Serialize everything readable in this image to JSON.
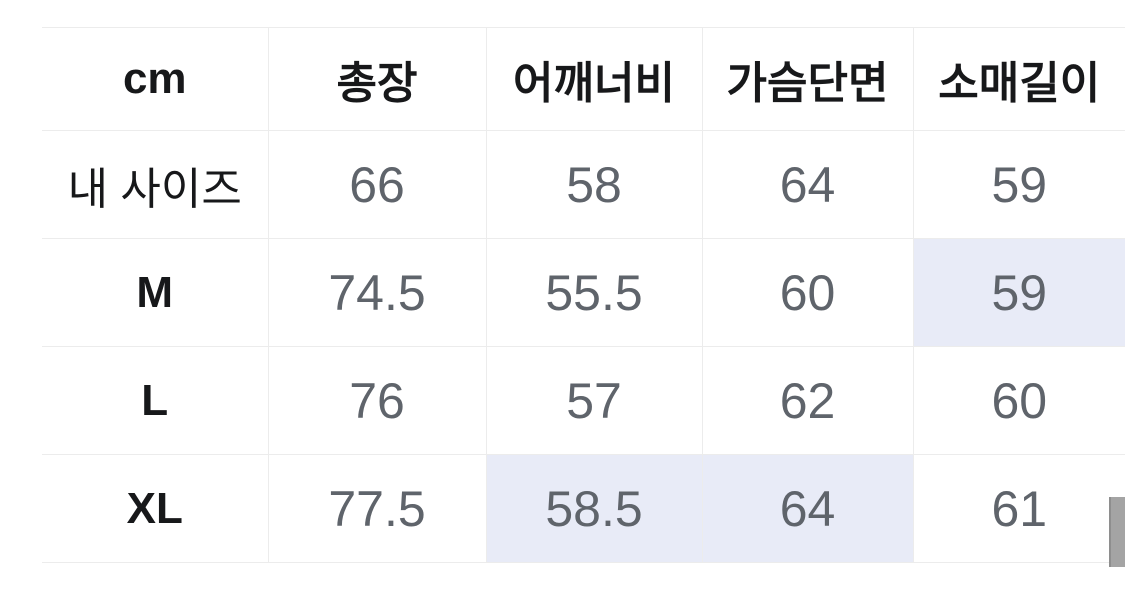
{
  "table": {
    "unit": "cm",
    "columns": [
      "cm",
      "총장",
      "어깨너비",
      "가슴단면",
      "소매길이"
    ],
    "rows": [
      {
        "label": "내 사이즈",
        "bold": false,
        "values": [
          "66",
          "58",
          "64",
          "59"
        ],
        "highlights": [
          false,
          false,
          false,
          false
        ]
      },
      {
        "label": "M",
        "bold": true,
        "values": [
          "74.5",
          "55.5",
          "60",
          "59"
        ],
        "highlights": [
          false,
          false,
          false,
          true
        ]
      },
      {
        "label": "L",
        "bold": true,
        "values": [
          "76",
          "57",
          "62",
          "60"
        ],
        "highlights": [
          false,
          false,
          false,
          false
        ]
      },
      {
        "label": "XL",
        "bold": true,
        "values": [
          "77.5",
          "58.5",
          "64",
          "61"
        ],
        "highlights": [
          false,
          true,
          true,
          false
        ]
      }
    ]
  },
  "colors": {
    "highlight_bg": "#e8ebf7",
    "grid_line": "#ececec",
    "header_text": "#17181a",
    "value_text": "#5f646b",
    "scrollbar_thumb": "#a4a4a4"
  }
}
